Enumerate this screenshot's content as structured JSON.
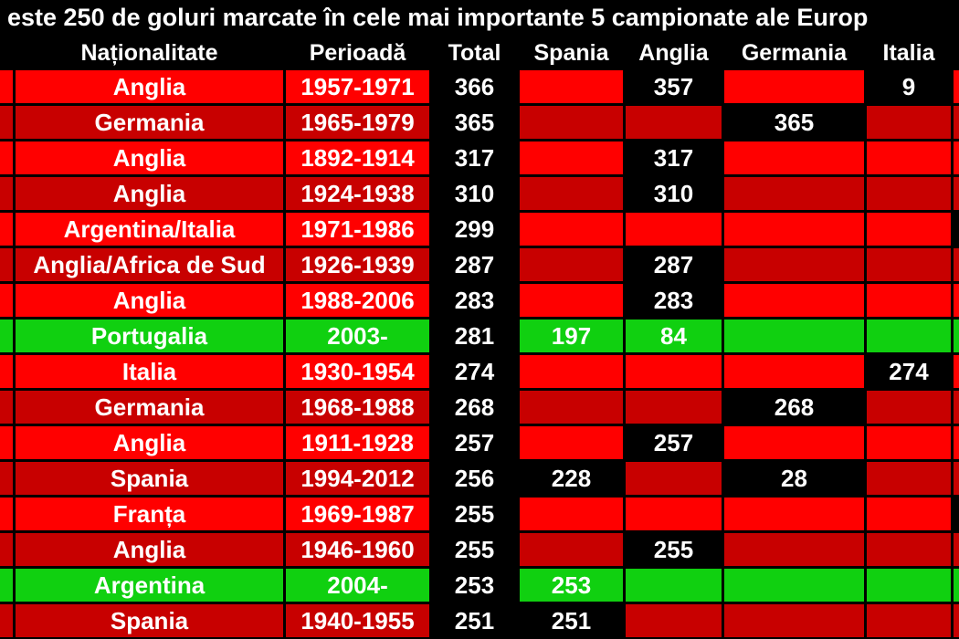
{
  "title": "este 250 de goluri  marcate în cele mai importante 5 campionate ale Europ",
  "headers": [
    "",
    "Naționalitate",
    "Perioadă",
    "Total",
    "Spania",
    "Anglia",
    "Germania",
    "Italia",
    ""
  ],
  "colors": {
    "red": "#ff0000",
    "darkred": "#c80000",
    "green": "#10d010",
    "black": "#000000"
  },
  "rows": [
    {
      "nat": "Anglia",
      "period": "1957-1971",
      "total": "366",
      "spania": "",
      "anglia": "357",
      "germania": "",
      "italia": "9",
      "shade": "red",
      "hl": [
        5,
        7
      ],
      "last": "red"
    },
    {
      "nat": "Germania",
      "period": "1965-1979",
      "total": "365",
      "spania": "",
      "anglia": "",
      "germania": "365",
      "italia": "",
      "shade": "darkred",
      "hl": [
        6
      ],
      "last": "darkred"
    },
    {
      "nat": "Anglia",
      "period": "1892-1914",
      "total": "317",
      "spania": "",
      "anglia": "317",
      "germania": "",
      "italia": "",
      "shade": "red",
      "hl": [
        5
      ],
      "last": "red"
    },
    {
      "nat": "Anglia",
      "period": "1924-1938",
      "total": "310",
      "spania": "",
      "anglia": "310",
      "germania": "",
      "italia": "",
      "shade": "darkred",
      "hl": [
        5
      ],
      "last": "darkred"
    },
    {
      "nat": "Argentina/Italia",
      "period": "1971-1986",
      "total": "299",
      "spania": "",
      "anglia": "",
      "germania": "",
      "italia": "",
      "shade": "red",
      "hl": [],
      "last": "black"
    },
    {
      "nat": "Anglia/Africa de Sud",
      "period": "1926-1939",
      "total": "287",
      "spania": "",
      "anglia": "287",
      "germania": "",
      "italia": "",
      "shade": "darkred",
      "hl": [
        5
      ],
      "last": "darkred"
    },
    {
      "nat": "Anglia",
      "period": "1988-2006",
      "total": "283",
      "spania": "",
      "anglia": "283",
      "germania": "",
      "italia": "",
      "shade": "red",
      "hl": [
        5
      ],
      "last": "red"
    },
    {
      "nat": "Portugalia",
      "period": "2003-",
      "total": "281",
      "spania": "197",
      "anglia": "84",
      "germania": "",
      "italia": "",
      "shade": "green",
      "hl": [],
      "last": "green"
    },
    {
      "nat": "Italia",
      "period": "1930-1954",
      "total": "274",
      "spania": "",
      "anglia": "",
      "germania": "",
      "italia": "274",
      "shade": "red",
      "hl": [
        7
      ],
      "last": "red"
    },
    {
      "nat": "Germania",
      "period": "1968-1988",
      "total": "268",
      "spania": "",
      "anglia": "",
      "germania": "268",
      "italia": "",
      "shade": "darkred",
      "hl": [
        6
      ],
      "last": "darkred"
    },
    {
      "nat": "Anglia",
      "period": "1911-1928",
      "total": "257",
      "spania": "",
      "anglia": "257",
      "germania": "",
      "italia": "",
      "shade": "red",
      "hl": [
        5
      ],
      "last": "red"
    },
    {
      "nat": "Spania",
      "period": "1994-2012",
      "total": "256",
      "spania": "228",
      "anglia": "",
      "germania": "28",
      "italia": "",
      "shade": "darkred",
      "hl": [
        4,
        6
      ],
      "last": "darkred"
    },
    {
      "nat": "Franța",
      "period": "1969-1987",
      "total": "255",
      "spania": "",
      "anglia": "",
      "germania": "",
      "italia": "",
      "shade": "red",
      "hl": [],
      "last": "black"
    },
    {
      "nat": "Anglia",
      "period": "1946-1960",
      "total": "255",
      "spania": "",
      "anglia": "255",
      "germania": "",
      "italia": "",
      "shade": "darkred",
      "hl": [
        5
      ],
      "last": "darkred"
    },
    {
      "nat": "Argentina",
      "period": "2004-",
      "total": "253",
      "spania": "253",
      "anglia": "",
      "germania": "",
      "italia": "",
      "shade": "green",
      "hl": [],
      "last": "green"
    },
    {
      "nat": "Spania",
      "period": "1940-1955",
      "total": "251",
      "spania": "251",
      "anglia": "",
      "germania": "",
      "italia": "",
      "shade": "darkred",
      "hl": [
        4
      ],
      "last": "darkred"
    }
  ]
}
